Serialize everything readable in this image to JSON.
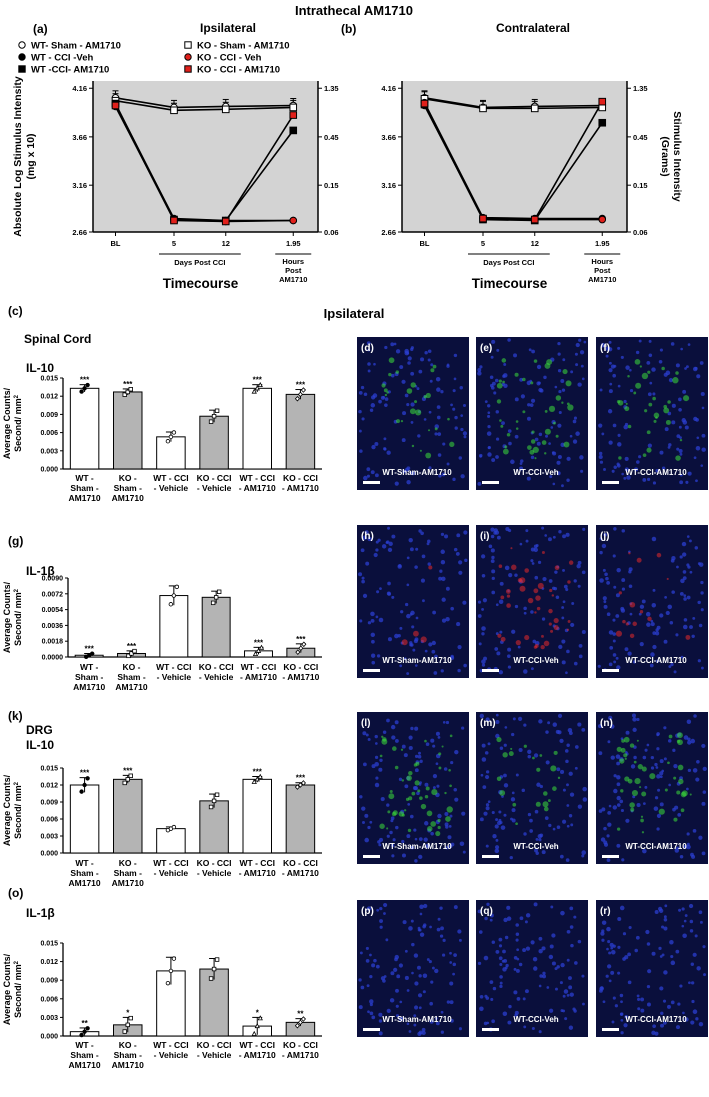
{
  "figure_title": "Intrathecal AM1710",
  "section_ipsilateral": "Ipsilateral",
  "legend": [
    {
      "label": "WT- Sham - AM1710",
      "marker": "circle",
      "fill": "#ffffff"
    },
    {
      "label": "KO - Sham - AM1710",
      "marker": "square",
      "fill": "#ffffff"
    },
    {
      "label": "WT - CCI -Veh",
      "marker": "circle",
      "fill": "#000000"
    },
    {
      "label": "KO - CCI - Veh",
      "marker": "circle",
      "fill": "#e0201b"
    },
    {
      "label": "WT -CCI- AM1710",
      "marker": "square",
      "fill": "#000000"
    },
    {
      "label": "KO - CCI - AM1710",
      "marker": "square",
      "fill": "#e0201b"
    }
  ],
  "line_common": {
    "x_ticks": [
      "BL",
      "5",
      "12",
      "1.95"
    ],
    "left_ticks": [
      "4.16",
      "3.66",
      "3.16",
      "2.66"
    ],
    "right_ticks": [
      "1.35",
      "0.45",
      "0.15",
      "0.06"
    ],
    "ylabel_left": "Absolute Log Stimulus Intensity (mg x 10)",
    "ylabel_right": "Stimulus Intensity (Grams)",
    "bracket_days": "Days Post CCI",
    "bracket_hours": "Hours Post AM1710",
    "xlabel": "Timecourse"
  },
  "bar_categories": [
    "WT - Sham - AM1710",
    "KO - Sham - AM1710",
    "WT - CCI - Vehicle",
    "KO - CCI - Vehicle",
    "WT - CCI - AM1710",
    "KO - CCI - AM1710"
  ],
  "bar_ylabel": "Average Counts/ Second/ mm2",
  "tissue": {
    "spinal": "Spinal Cord",
    "drg": "DRG"
  },
  "colors": {
    "white_bar": "#ffffff",
    "gray_bar": "#b4b4b4",
    "plot_bg": "#d3d3d3",
    "red": "#e0201b",
    "micro_bg": "#0a0f3c"
  },
  "chart_data": [
    {
      "type": "line",
      "panel": "(a)",
      "title": "Ipsilateral",
      "x": [
        "BL",
        "5",
        "12",
        "1.95"
      ],
      "ylim": [
        2.66,
        4.16
      ],
      "series": [
        {
          "name": "WT- Sham - AM1710",
          "values": [
            4.06,
            3.96,
            3.97,
            3.98
          ]
        },
        {
          "name": "KO - Sham - AM1710",
          "values": [
            4.03,
            3.93,
            3.94,
            3.96
          ]
        },
        {
          "name": "WT - CCI -Veh",
          "values": [
            3.99,
            2.8,
            2.78,
            2.78
          ]
        },
        {
          "name": "KO - CCI - Veh",
          "values": [
            3.97,
            2.79,
            2.77,
            2.78
          ]
        },
        {
          "name": "WT -CCI- AM1710",
          "values": [
            4.0,
            2.79,
            2.78,
            3.72
          ]
        },
        {
          "name": "KO - CCI - AM1710",
          "values": [
            3.98,
            2.78,
            2.77,
            3.88
          ]
        }
      ]
    },
    {
      "type": "line",
      "panel": "(b)",
      "title": "Contralateral",
      "x": [
        "BL",
        "5",
        "12",
        "1.95"
      ],
      "ylim": [
        2.66,
        4.16
      ],
      "series": [
        {
          "name": "WT- Sham - AM1710",
          "values": [
            4.06,
            3.96,
            3.97,
            3.98
          ]
        },
        {
          "name": "KO - Sham - AM1710",
          "values": [
            4.05,
            3.95,
            3.95,
            3.96
          ]
        },
        {
          "name": "WT - CCI -Veh",
          "values": [
            4.01,
            2.81,
            2.8,
            2.8
          ]
        },
        {
          "name": "KO - CCI - Veh",
          "values": [
            3.98,
            2.8,
            2.79,
            2.79
          ]
        },
        {
          "name": "WT -CCI- AM1710",
          "values": [
            3.99,
            2.79,
            2.78,
            3.8
          ]
        },
        {
          "name": "KO - CCI - AM1710",
          "values": [
            4.0,
            2.8,
            2.79,
            4.02
          ]
        }
      ]
    },
    {
      "type": "bar",
      "panel": "(c)",
      "title": "IL-10",
      "tissue": "Spinal Cord",
      "ylim": [
        0,
        0.015
      ],
      "yticks": [
        "0.015",
        "0.012",
        "0.009",
        "0.006",
        "0.003",
        "0.000"
      ],
      "values": [
        0.0133,
        0.0127,
        0.0053,
        0.0087,
        0.0133,
        0.0123
      ],
      "errors": [
        0.0006,
        0.0005,
        0.0008,
        0.001,
        0.0006,
        0.0008
      ],
      "significance": [
        "***",
        "***",
        "",
        "",
        "***",
        "***"
      ]
    },
    {
      "type": "bar",
      "panel": "(g)",
      "title": "IL-1β",
      "tissue": "Spinal Cord",
      "ylim": [
        0,
        0.009
      ],
      "yticks": [
        "0.0090",
        "0.0072",
        "0.0054",
        "0.0036",
        "0.0018",
        "0.0000"
      ],
      "values": [
        0.0002,
        0.0004,
        0.007,
        0.0068,
        0.0007,
        0.001
      ],
      "errors": [
        0.0002,
        0.0003,
        0.0011,
        0.0007,
        0.0004,
        0.0005
      ],
      "significance": [
        "***",
        "***",
        "",
        "",
        "***",
        "***"
      ]
    },
    {
      "type": "bar",
      "panel": "(k)",
      "title": "IL-10",
      "tissue": "DRG",
      "ylim": [
        0,
        0.015
      ],
      "yticks": [
        "0.015",
        "0.012",
        "0.009",
        "0.006",
        "0.003",
        "0.000"
      ],
      "values": [
        0.012,
        0.013,
        0.0043,
        0.0092,
        0.013,
        0.012
      ],
      "errors": [
        0.0013,
        0.0007,
        0.0003,
        0.0012,
        0.0005,
        0.0004
      ],
      "significance": [
        "***",
        "***",
        "",
        "",
        "***",
        "***"
      ]
    },
    {
      "type": "bar",
      "panel": "(o)",
      "title": "IL-1β",
      "tissue": "DRG",
      "ylim": [
        0,
        0.015
      ],
      "yticks": [
        "0.015",
        "0.012",
        "0.009",
        "0.006",
        "0.003",
        "0.000"
      ],
      "values": [
        0.0007,
        0.0018,
        0.0105,
        0.0108,
        0.0016,
        0.0022
      ],
      "errors": [
        0.0006,
        0.0012,
        0.0022,
        0.0017,
        0.0014,
        0.0006
      ],
      "significance": [
        "**",
        "*",
        "",
        "",
        "*",
        "**"
      ]
    }
  ],
  "micrographs": [
    {
      "panel": "(d)",
      "label": "WT-Sham-AM1710",
      "stain": "green",
      "intensity": 0.35
    },
    {
      "panel": "(e)",
      "label": "WT-CCI-Veh",
      "stain": "green",
      "intensity": 0.55
    },
    {
      "panel": "(f)",
      "label": "WT-CCI-AM1710",
      "stain": "green",
      "intensity": 0.45
    },
    {
      "panel": "(h)",
      "label": "WT-Sham-AM1710",
      "stain": "red",
      "intensity": 0.05
    },
    {
      "panel": "(i)",
      "label": "WT-CCI-Veh",
      "stain": "red",
      "intensity": 0.55
    },
    {
      "panel": "(j)",
      "label": "WT-CCI-AM1710",
      "stain": "red",
      "intensity": 0.2
    },
    {
      "panel": "(l)",
      "label": "WT-Sham-AM1710",
      "stain": "green",
      "intensity": 0.7
    },
    {
      "panel": "(m)",
      "label": "WT-CCI-Veh",
      "stain": "green",
      "intensity": 0.3
    },
    {
      "panel": "(n)",
      "label": "WT-CCI-AM1710",
      "stain": "green",
      "intensity": 0.6
    },
    {
      "panel": "(p)",
      "label": "WT-Sham-AM1710",
      "stain": "red",
      "intensity": 0.0
    },
    {
      "panel": "(q)",
      "label": "WT-CCI-Veh",
      "stain": "red",
      "intensity": 0.0
    },
    {
      "panel": "(r)",
      "label": "WT-CCI-AM1710",
      "stain": "red",
      "intensity": 0.0
    }
  ]
}
